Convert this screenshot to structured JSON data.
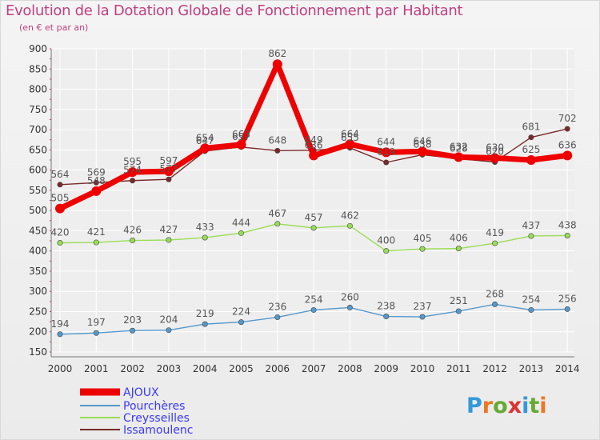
{
  "header": {
    "title": "Evolution de la Dotation Globale de Fonctionnement par Habitant",
    "subtitle": "(en € et par an)"
  },
  "brand": {
    "name": "Proxiti",
    "letters": [
      "P",
      "r",
      "o",
      "x",
      "i",
      "t",
      "i"
    ]
  },
  "colors": {
    "background": "#eeeeee",
    "grid": "#ffffff",
    "axis_text": "#333333",
    "label_text": "#555555",
    "title": "#c04080",
    "legend_text": "#3a3aff"
  },
  "chart_data": {
    "type": "line",
    "title": "Evolution de la Dotation Globale de Fonctionnement par Habitant",
    "subtitle": "(en € et par an)",
    "xlabel": "",
    "ylabel": "",
    "ylim": [
      150,
      900
    ],
    "yticks": [
      150,
      200,
      250,
      300,
      350,
      400,
      450,
      500,
      550,
      600,
      650,
      700,
      750,
      800,
      850,
      900
    ],
    "grid": true,
    "legend_position": "bottom-left",
    "x": [
      "2000",
      "2001",
      "2002",
      "2003",
      "2004",
      "2005",
      "2006",
      "2007",
      "2008",
      "2009",
      "2010",
      "2011",
      "2012",
      "2013",
      "2014"
    ],
    "series": [
      {
        "name": "Issamoulenc",
        "color": "#7a2a2a",
        "values": [
          564,
          569,
          574,
          577,
          647,
          657,
          648,
          649,
          655,
          619,
          638,
          628,
          620,
          681,
          702
        ],
        "labels": [
          "564",
          "569",
          "574",
          "577",
          "647",
          "657",
          "648",
          "649",
          "655",
          "619",
          "638",
          "628",
          "620",
          "681",
          "702"
        ]
      },
      {
        "name": "Creysseilles",
        "color": "#99dd55",
        "values": [
          420,
          421,
          426,
          427,
          433,
          444,
          467,
          457,
          462,
          400,
          405,
          406,
          419,
          437,
          438
        ],
        "labels": [
          "420",
          "421",
          "426",
          "427",
          "433",
          "444",
          "467",
          "457",
          "462",
          "400",
          "405",
          "406",
          "419",
          "437",
          "438"
        ]
      },
      {
        "name": "Pourchères",
        "color": "#5599cc",
        "values": [
          194,
          197,
          203,
          204,
          219,
          224,
          236,
          254,
          260,
          238,
          237,
          251,
          268,
          254,
          256
        ],
        "labels": [
          "194",
          "197",
          "203",
          "204",
          "219",
          "224",
          "236",
          "254",
          "260",
          "238",
          "237",
          "251",
          "268",
          "254",
          "256"
        ]
      },
      {
        "name": "AJOUX",
        "color": "#ee0000",
        "values": [
          505,
          548,
          595,
          597,
          654,
          663,
          862,
          636,
          664,
          644,
          646,
          632,
          630,
          625,
          636
        ],
        "labels": [
          "505",
          "548",
          "595",
          "597",
          "654",
          "663",
          "862",
          "636",
          "664",
          "644",
          "646",
          "632",
          "630",
          "625",
          "636"
        ]
      }
    ],
    "legend": [
      "AJOUX",
      "Pourchères",
      "Creysseilles",
      "Issamoulenc"
    ]
  }
}
